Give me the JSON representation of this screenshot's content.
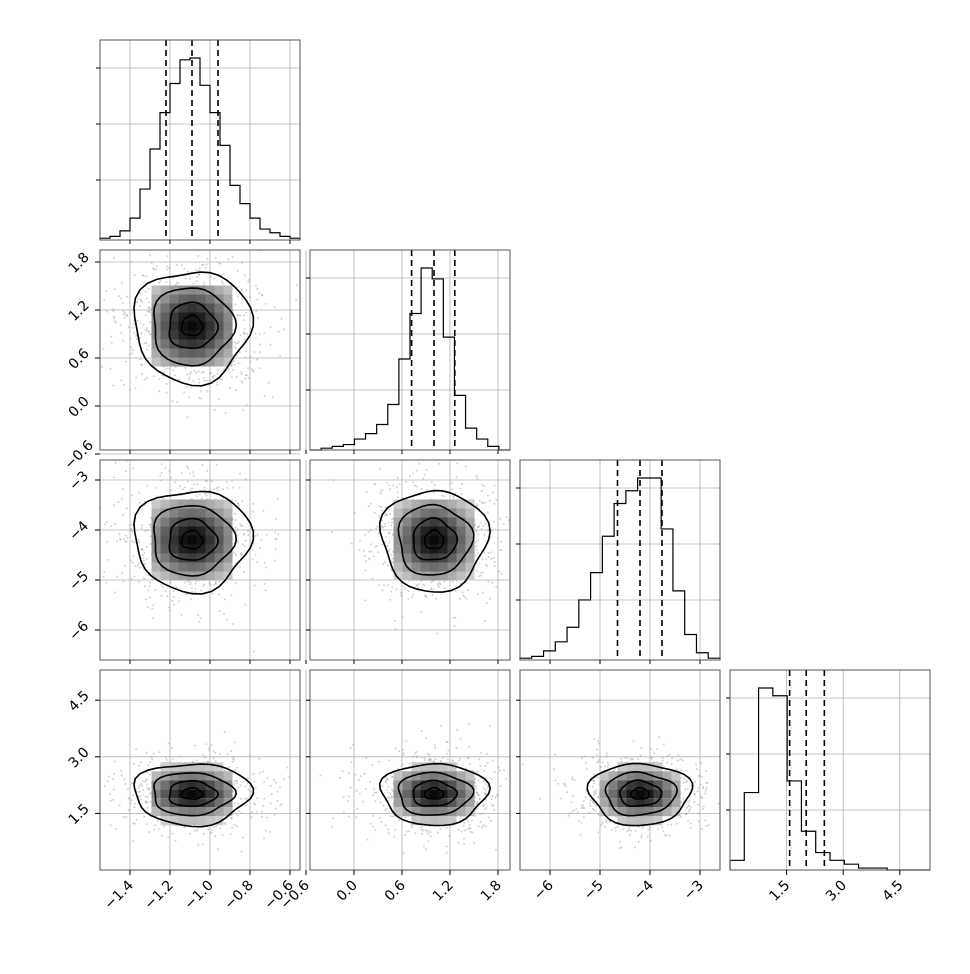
{
  "chart_data": {
    "type": "corner",
    "title": "",
    "params": [
      {
        "ticks": [
          "-1.4",
          "-1.2",
          "-1.0",
          "-0.8",
          "-0.6"
        ],
        "range": [
          -1.55,
          -0.55
        ],
        "median": -1.09,
        "q16": -1.22,
        "q84": -0.96,
        "hist": [
          1,
          2,
          5,
          12,
          28,
          50,
          70,
          86,
          99,
          100,
          85,
          70,
          52,
          30,
          20,
          12,
          6,
          4,
          2,
          1
        ]
      },
      {
        "ticks": [
          "-0.6",
          "0.0",
          "0.6",
          "1.2",
          "1.8"
        ],
        "range": [
          -0.55,
          1.95
        ],
        "median": 1.0,
        "q16": 0.72,
        "q84": 1.26,
        "hist": [
          0,
          1,
          2,
          3,
          6,
          9,
          14,
          25,
          50,
          75,
          100,
          94,
          62,
          30,
          12,
          6,
          2,
          0
        ]
      },
      {
        "ticks": [
          "-6",
          "-5",
          "-4",
          "-3"
        ],
        "range": [
          -6.6,
          -2.6
        ],
        "median": -4.2,
        "q16": -4.65,
        "q84": -3.76,
        "hist": [
          1,
          2,
          5,
          10,
          18,
          33,
          48,
          68,
          86,
          93,
          100,
          100,
          72,
          38,
          14,
          4,
          1
        ]
      },
      {
        "ticks": [
          "1.5",
          "3.0",
          "4.5"
        ],
        "range": [
          0.0,
          5.3
        ],
        "median": 2.02,
        "q16": 1.58,
        "q84": 2.5,
        "hist": [
          5,
          40,
          94,
          90,
          46,
          20,
          9,
          5,
          3,
          1,
          1,
          0,
          0,
          0
        ]
      }
    ],
    "pairs": [
      {
        "row": 1,
        "col": 0,
        "cx": -1.09,
        "cy": 1.0,
        "sx": 0.15,
        "sy": 0.36
      },
      {
        "row": 2,
        "col": 0,
        "cx": -1.09,
        "cy": -4.2,
        "sx": 0.15,
        "sy": 0.52
      },
      {
        "row": 2,
        "col": 1,
        "cx": 1.0,
        "cy": -4.2,
        "sx": 0.34,
        "sy": 0.52
      },
      {
        "row": 3,
        "col": 0,
        "cx": -1.09,
        "cy": 2.02,
        "sx": 0.15,
        "sy": 0.42
      },
      {
        "row": 3,
        "col": 1,
        "cx": 1.0,
        "cy": 2.02,
        "sx": 0.34,
        "sy": 0.42
      },
      {
        "row": 3,
        "col": 2,
        "cx": -4.2,
        "cy": 2.02,
        "sx": 0.52,
        "sy": 0.42
      }
    ],
    "grid": true,
    "colors": {
      "line": "#000000",
      "scatter": "#9a9a9a",
      "grid": "#b0b0b0"
    }
  }
}
